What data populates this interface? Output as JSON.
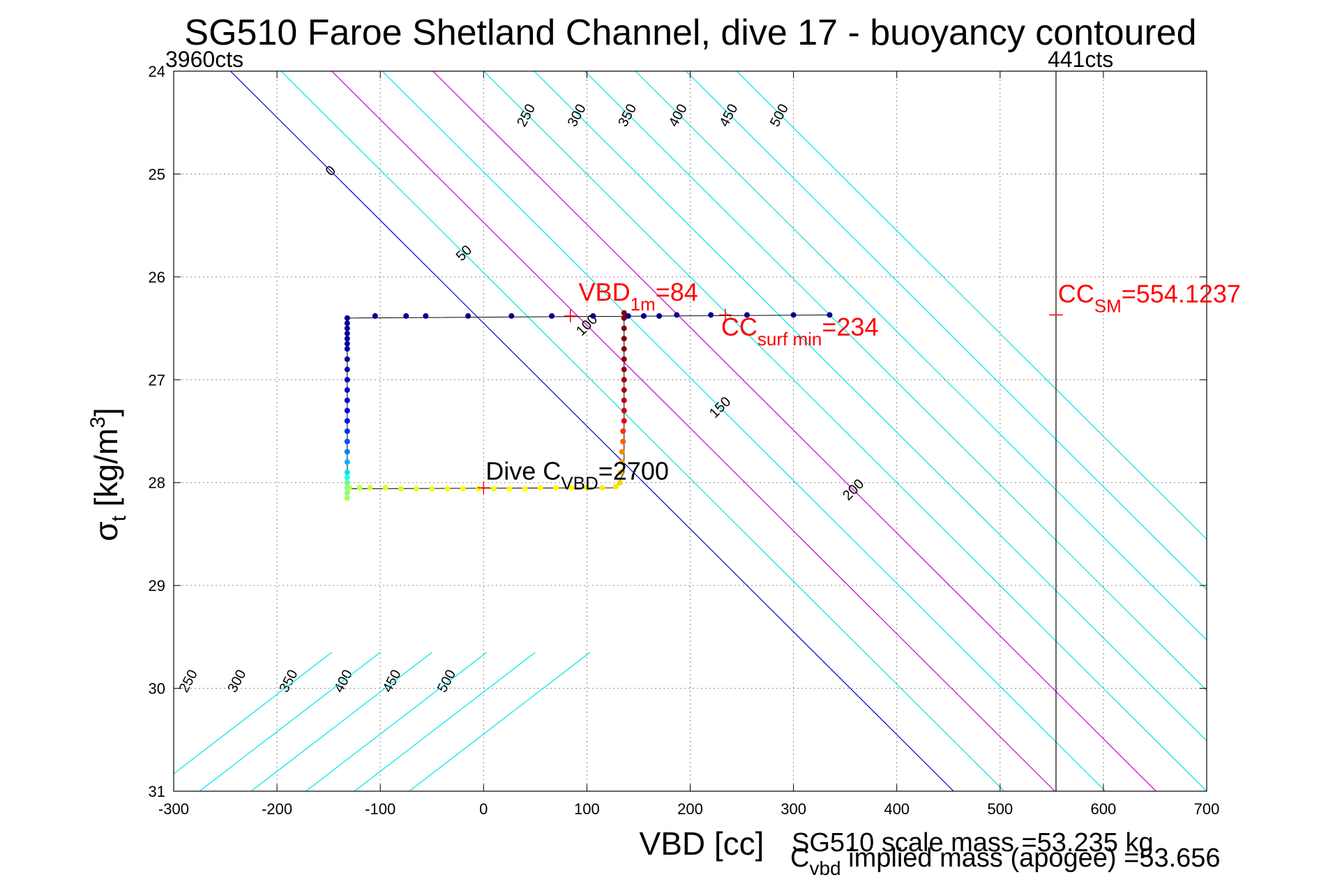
{
  "chart_data": {
    "type": "scatter",
    "title": "SG510 Faroe Shetland Channel, dive 17 - buoyancy contoured",
    "xlabel": "VBD [cc]",
    "ylabel": {
      "sym": "σ",
      "sub": "t",
      "unit_main": " [kg/m",
      "unit_sup": "3",
      "unit_end": "]"
    },
    "xlim": [
      -300,
      700
    ],
    "ylim": [
      24,
      31
    ],
    "y_reversed": true,
    "grid": true,
    "x_ticks": [
      -300,
      -200,
      -100,
      0,
      100,
      200,
      300,
      400,
      500,
      600,
      700
    ],
    "y_ticks": [
      24,
      25,
      26,
      27,
      28,
      29,
      30,
      31
    ],
    "top_labels": [
      {
        "text": "3960cts",
        "x": -300
      },
      {
        "text": "441cts",
        "x": 554.1237
      }
    ],
    "buoyancy_contours": [
      {
        "value": "0",
        "color": "#0000cc",
        "x_at_24": -245,
        "slope_cc_per_sigma": 100
      },
      {
        "value": "50",
        "color": "#00e5e5",
        "x_at_24": -196,
        "slope_cc_per_sigma": 100
      },
      {
        "value": "100",
        "color": "#cc00cc",
        "x_at_24": -147,
        "slope_cc_per_sigma": 100
      },
      {
        "value": "150",
        "color": "#00e5e5",
        "x_at_24": -98,
        "slope_cc_per_sigma": 100
      },
      {
        "value": "200",
        "color": "#cc00cc",
        "x_at_24": -49,
        "slope_cc_per_sigma": 100
      },
      {
        "value": "250",
        "color": "#00e5e5",
        "x_at_24": 0,
        "slope_cc_per_sigma": 100
      },
      {
        "value": "300",
        "color": "#00e5e5",
        "x_at_24": 49,
        "slope_cc_per_sigma": 100
      },
      {
        "value": "350",
        "color": "#00e5e5",
        "x_at_24": 98,
        "slope_cc_per_sigma": 100
      },
      {
        "value": "400",
        "color": "#00e5e5",
        "x_at_24": 147,
        "slope_cc_per_sigma": 100
      },
      {
        "value": "450",
        "color": "#00e5e5",
        "x_at_24": 196,
        "slope_cc_per_sigma": 100
      },
      {
        "value": "500",
        "color": "#00e5e5",
        "x_at_24": 245,
        "slope_cc_per_sigma": 100
      }
    ],
    "series": [
      {
        "marker": "dot",
        "line_color": "#000000",
        "points": [
          {
            "x": -132,
            "y": 26.4,
            "c": "#00008f"
          },
          {
            "x": -132,
            "y": 26.45,
            "c": "#00008f"
          },
          {
            "x": -132,
            "y": 26.5,
            "c": "#00008f"
          },
          {
            "x": -132,
            "y": 26.55,
            "c": "#000096"
          },
          {
            "x": -132,
            "y": 26.6,
            "c": "#00009e"
          },
          {
            "x": -132,
            "y": 26.65,
            "c": "#0000a5"
          },
          {
            "x": -132,
            "y": 26.7,
            "c": "#0000ac"
          },
          {
            "x": -132,
            "y": 26.8,
            "c": "#0000b3"
          },
          {
            "x": -132,
            "y": 26.9,
            "c": "#0000ba"
          },
          {
            "x": -132,
            "y": 27.0,
            "c": "#0000c8"
          },
          {
            "x": -132,
            "y": 27.1,
            "c": "#0000d6"
          },
          {
            "x": -132,
            "y": 27.2,
            "c": "#0000e5"
          },
          {
            "x": -132,
            "y": 27.3,
            "c": "#0000f3"
          },
          {
            "x": -132,
            "y": 27.4,
            "c": "#0010ff"
          },
          {
            "x": -132,
            "y": 27.5,
            "c": "#0030ff"
          },
          {
            "x": -132,
            "y": 27.6,
            "c": "#0050ff"
          },
          {
            "x": -132,
            "y": 27.7,
            "c": "#0080ff"
          },
          {
            "x": -132,
            "y": 27.8,
            "c": "#00b0ff"
          },
          {
            "x": -132,
            "y": 27.9,
            "c": "#00e0ff"
          },
          {
            "x": -132,
            "y": 27.95,
            "c": "#20ffdf"
          },
          {
            "x": -132,
            "y": 28.0,
            "c": "#60ff9f"
          },
          {
            "x": -132,
            "y": 28.05,
            "c": "#80ff80"
          },
          {
            "x": -132,
            "y": 28.1,
            "c": "#90ff70"
          },
          {
            "x": -132,
            "y": 28.15,
            "c": "#a0ff60"
          },
          {
            "x": -130,
            "y": 28.05,
            "c": "#b0ff50"
          },
          {
            "x": -120,
            "y": 28.05,
            "c": "#c0ff40"
          },
          {
            "x": -110,
            "y": 28.05,
            "c": "#d0ff30"
          },
          {
            "x": -95,
            "y": 28.05,
            "c": "#d8ff28"
          },
          {
            "x": -80,
            "y": 28.06,
            "c": "#e0ff20"
          },
          {
            "x": -65,
            "y": 28.06,
            "c": "#e8ff18"
          },
          {
            "x": -50,
            "y": 28.06,
            "c": "#eeff10"
          },
          {
            "x": -35,
            "y": 28.06,
            "c": "#f2ff0c"
          },
          {
            "x": -20,
            "y": 28.06,
            "c": "#f6ff08"
          },
          {
            "x": -5,
            "y": 28.06,
            "c": "#f8ff06"
          },
          {
            "x": 10,
            "y": 28.06,
            "c": "#faff04"
          },
          {
            "x": 25,
            "y": 28.06,
            "c": "#fcff02"
          },
          {
            "x": 40,
            "y": 28.06,
            "c": "#ffff00"
          },
          {
            "x": 55,
            "y": 28.05,
            "c": "#ffff00"
          },
          {
            "x": 70,
            "y": 28.05,
            "c": "#ffff00"
          },
          {
            "x": 85,
            "y": 28.05,
            "c": "#fffb00"
          },
          {
            "x": 100,
            "y": 28.05,
            "c": "#fff600"
          },
          {
            "x": 115,
            "y": 28.05,
            "c": "#fff000"
          },
          {
            "x": 128,
            "y": 28.04,
            "c": "#ffe800"
          },
          {
            "x": 132,
            "y": 28.0,
            "c": "#ffd000"
          },
          {
            "x": 133,
            "y": 27.9,
            "c": "#ffb800"
          },
          {
            "x": 134,
            "y": 27.8,
            "c": "#ffa000"
          },
          {
            "x": 134,
            "y": 27.7,
            "c": "#ff8800"
          },
          {
            "x": 135,
            "y": 27.6,
            "c": "#ff6000"
          },
          {
            "x": 135,
            "y": 27.5,
            "c": "#ff3000"
          },
          {
            "x": 136,
            "y": 27.4,
            "c": "#f00000"
          },
          {
            "x": 136,
            "y": 27.3,
            "c": "#d80000"
          },
          {
            "x": 136,
            "y": 27.2,
            "c": "#c00000"
          },
          {
            "x": 136,
            "y": 27.1,
            "c": "#b00000"
          },
          {
            "x": 136,
            "y": 27.0,
            "c": "#a00000"
          },
          {
            "x": 136,
            "y": 26.9,
            "c": "#980000"
          },
          {
            "x": 136,
            "y": 26.8,
            "c": "#900000"
          },
          {
            "x": 136,
            "y": 26.7,
            "c": "#880000"
          },
          {
            "x": 136,
            "y": 26.6,
            "c": "#840000"
          },
          {
            "x": 136,
            "y": 26.5,
            "c": "#800000"
          },
          {
            "x": 136,
            "y": 26.4,
            "c": "#800000"
          },
          {
            "x": 136,
            "y": 26.35,
            "c": "#800000"
          },
          {
            "x": 140,
            "y": 26.38,
            "c": "#00008f"
          },
          {
            "x": 155,
            "y": 26.38,
            "c": "#00008f"
          },
          {
            "x": 170,
            "y": 26.38,
            "c": "#00008f"
          },
          {
            "x": 187,
            "y": 26.37,
            "c": "#00008f"
          },
          {
            "x": 220,
            "y": 26.37,
            "c": "#00008f"
          },
          {
            "x": 255,
            "y": 26.37,
            "c": "#00008f"
          },
          {
            "x": 300,
            "y": 26.37,
            "c": "#00008f"
          },
          {
            "x": 335,
            "y": 26.37,
            "c": "#00008f"
          },
          {
            "x": 106,
            "y": 26.38,
            "c": "#00008f"
          },
          {
            "x": 66,
            "y": 26.38,
            "c": "#00008f"
          },
          {
            "x": 27,
            "y": 26.38,
            "c": "#00008f"
          },
          {
            "x": -15,
            "y": 26.38,
            "c": "#00008f"
          },
          {
            "x": -56,
            "y": 26.38,
            "c": "#00008f"
          },
          {
            "x": -75,
            "y": 26.38,
            "c": "#00008f"
          },
          {
            "x": -105,
            "y": 26.38,
            "c": "#00008f"
          }
        ],
        "path": [
          [
            -132,
            28.15
          ],
          [
            -132,
            26.4
          ],
          [
            335,
            26.37
          ]
        ],
        "path2": [
          [
            -132,
            28.06
          ],
          [
            128,
            28.05
          ],
          [
            136,
            27.9
          ],
          [
            136,
            26.37
          ]
        ]
      }
    ],
    "annotations": [
      {
        "kind": "plus",
        "x": 84,
        "y": 26.38,
        "color": "#ff0000",
        "main": "VBD",
        "sub": "1m",
        "tail": "=84",
        "label_x": 92,
        "label_y": 26.23
      },
      {
        "kind": "plus",
        "x": 234,
        "y": 26.37,
        "color": "#ff0000",
        "main": "CC",
        "sub": "surf min",
        "tail": "=234",
        "label_x": 230,
        "label_y": 26.57
      },
      {
        "kind": "plus",
        "x": 0,
        "y": 28.05,
        "color": "#ff0000",
        "main": "Dive C",
        "sub": "VBD",
        "tail": "=2700",
        "label_x": 2,
        "label_y": 27.97,
        "text_color": "#000000"
      },
      {
        "kind": "tick",
        "x": 554.1237,
        "y": 26.37,
        "color": "#ff0000",
        "main": "CC",
        "sub": "SM",
        "tail": "=554.1237",
        "label_x": 556,
        "label_y": 26.25
      }
    ],
    "vertical_line_x": 554.1237,
    "footer": {
      "scale_mass": "SG510 scale mass =53.235 kg",
      "implied_main": "C",
      "implied_sub": "vbd",
      "implied_tail": " implied mass (apogee) =53.656"
    }
  }
}
